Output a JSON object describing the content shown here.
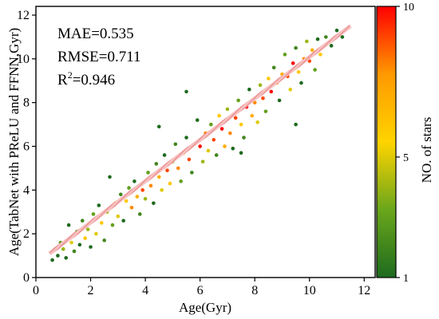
{
  "chart_data": {
    "type": "scatter",
    "title": "",
    "xlabel": "Age(Gyr)",
    "ylabel": "Age(TabNet with PReLU and FFNN,Gyr)",
    "xlim": [
      0,
      12.4
    ],
    "ylim": [
      0,
      12.4
    ],
    "xticks": [
      0,
      2,
      4,
      6,
      8,
      10,
      12
    ],
    "yticks": [
      0,
      2,
      4,
      6,
      8,
      10,
      12
    ],
    "grid": false,
    "annotations": {
      "mae": "MAE=0.535",
      "rmse": "RMSE=0.711",
      "r2_prefix": "R",
      "r2_sup": "2",
      "r2_value": "=0.946"
    },
    "reference_line": {
      "x": [
        0.5,
        11.5
      ],
      "y": [
        1.1,
        11.5
      ],
      "color": "#f4a0a0",
      "style": "hatched"
    },
    "colorbar": {
      "label": "NO. of stars",
      "ticks": [
        1,
        5,
        10
      ],
      "range": [
        1,
        10
      ],
      "colors": [
        "#1e6b1e",
        "#6aa61b",
        "#ffd400",
        "#ff9900",
        "#ff0000"
      ]
    },
    "points": [
      {
        "x": 0.6,
        "y": 0.8,
        "c": 1
      },
      {
        "x": 0.7,
        "y": 1.3,
        "c": 2
      },
      {
        "x": 0.8,
        "y": 1.0,
        "c": 1
      },
      {
        "x": 0.9,
        "y": 1.6,
        "c": 3
      },
      {
        "x": 1.0,
        "y": 1.3,
        "c": 4
      },
      {
        "x": 1.1,
        "y": 0.9,
        "c": 1
      },
      {
        "x": 1.2,
        "y": 2.4,
        "c": 1
      },
      {
        "x": 1.3,
        "y": 1.6,
        "c": 5
      },
      {
        "x": 1.4,
        "y": 1.2,
        "c": 2
      },
      {
        "x": 1.5,
        "y": 2.1,
        "c": 3
      },
      {
        "x": 1.6,
        "y": 1.5,
        "c": 1
      },
      {
        "x": 1.7,
        "y": 2.6,
        "c": 2
      },
      {
        "x": 1.8,
        "y": 1.8,
        "c": 6
      },
      {
        "x": 1.9,
        "y": 2.2,
        "c": 4
      },
      {
        "x": 2.0,
        "y": 1.4,
        "c": 1
      },
      {
        "x": 2.1,
        "y": 2.9,
        "c": 3
      },
      {
        "x": 2.2,
        "y": 2.0,
        "c": 5
      },
      {
        "x": 2.3,
        "y": 3.3,
        "c": 1
      },
      {
        "x": 2.4,
        "y": 2.5,
        "c": 6
      },
      {
        "x": 2.5,
        "y": 1.7,
        "c": 2
      },
      {
        "x": 2.6,
        "y": 3.0,
        "c": 4
      },
      {
        "x": 2.7,
        "y": 4.6,
        "c": 1
      },
      {
        "x": 2.8,
        "y": 2.4,
        "c": 3
      },
      {
        "x": 2.9,
        "y": 3.4,
        "c": 7
      },
      {
        "x": 3.0,
        "y": 2.8,
        "c": 5
      },
      {
        "x": 3.1,
        "y": 3.8,
        "c": 2
      },
      {
        "x": 3.2,
        "y": 2.6,
        "c": 1
      },
      {
        "x": 3.3,
        "y": 3.5,
        "c": 6
      },
      {
        "x": 3.4,
        "y": 4.1,
        "c": 3
      },
      {
        "x": 3.5,
        "y": 3.2,
        "c": 8
      },
      {
        "x": 3.6,
        "y": 4.4,
        "c": 1
      },
      {
        "x": 3.7,
        "y": 3.7,
        "c": 7
      },
      {
        "x": 3.8,
        "y": 2.9,
        "c": 2
      },
      {
        "x": 3.9,
        "y": 4.0,
        "c": 9
      },
      {
        "x": 4.0,
        "y": 3.6,
        "c": 4
      },
      {
        "x": 4.1,
        "y": 4.8,
        "c": 3
      },
      {
        "x": 4.2,
        "y": 4.2,
        "c": 8
      },
      {
        "x": 4.3,
        "y": 3.4,
        "c": 1
      },
      {
        "x": 4.4,
        "y": 5.2,
        "c": 2
      },
      {
        "x": 4.5,
        "y": 4.6,
        "c": 7
      },
      {
        "x": 4.6,
        "y": 4.0,
        "c": 5
      },
      {
        "x": 4.7,
        "y": 5.6,
        "c": 1
      },
      {
        "x": 4.8,
        "y": 4.9,
        "c": 9
      },
      {
        "x": 4.9,
        "y": 4.3,
        "c": 6
      },
      {
        "x": 5.0,
        "y": 5.3,
        "c": 4
      },
      {
        "x": 5.1,
        "y": 6.1,
        "c": 2
      },
      {
        "x": 5.2,
        "y": 5.0,
        "c": 8
      },
      {
        "x": 5.3,
        "y": 4.4,
        "c": 3
      },
      {
        "x": 5.4,
        "y": 5.7,
        "c": 7
      },
      {
        "x": 5.5,
        "y": 6.4,
        "c": 1
      },
      {
        "x": 5.6,
        "y": 5.4,
        "c": 9
      },
      {
        "x": 5.7,
        "y": 4.8,
        "c": 2
      },
      {
        "x": 5.8,
        "y": 6.1,
        "c": 6
      },
      {
        "x": 5.9,
        "y": 7.2,
        "c": 1
      },
      {
        "x": 6.0,
        "y": 6.0,
        "c": 10
      },
      {
        "x": 6.1,
        "y": 5.3,
        "c": 4
      },
      {
        "x": 6.2,
        "y": 6.6,
        "c": 8
      },
      {
        "x": 6.3,
        "y": 5.8,
        "c": 5
      },
      {
        "x": 6.4,
        "y": 7.0,
        "c": 3
      },
      {
        "x": 6.5,
        "y": 6.3,
        "c": 9
      },
      {
        "x": 6.6,
        "y": 5.6,
        "c": 2
      },
      {
        "x": 6.7,
        "y": 7.4,
        "c": 6
      },
      {
        "x": 6.8,
        "y": 6.8,
        "c": 10
      },
      {
        "x": 6.9,
        "y": 6.0,
        "c": 7
      },
      {
        "x": 7.0,
        "y": 7.7,
        "c": 4
      },
      {
        "x": 7.1,
        "y": 6.6,
        "c": 8
      },
      {
        "x": 7.2,
        "y": 5.9,
        "c": 1
      },
      {
        "x": 7.3,
        "y": 7.3,
        "c": 9
      },
      {
        "x": 7.4,
        "y": 8.1,
        "c": 3
      },
      {
        "x": 7.5,
        "y": 7.0,
        "c": 6
      },
      {
        "x": 7.6,
        "y": 6.4,
        "c": 2
      },
      {
        "x": 7.7,
        "y": 7.8,
        "c": 10
      },
      {
        "x": 7.8,
        "y": 8.6,
        "c": 1
      },
      {
        "x": 7.9,
        "y": 7.4,
        "c": 7
      },
      {
        "x": 8.0,
        "y": 8.0,
        "c": 8
      },
      {
        "x": 8.1,
        "y": 7.1,
        "c": 5
      },
      {
        "x": 8.2,
        "y": 8.8,
        "c": 4
      },
      {
        "x": 8.3,
        "y": 8.2,
        "c": 9
      },
      {
        "x": 8.4,
        "y": 7.6,
        "c": 3
      },
      {
        "x": 8.5,
        "y": 9.1,
        "c": 6
      },
      {
        "x": 8.6,
        "y": 8.5,
        "c": 10
      },
      {
        "x": 8.7,
        "y": 9.6,
        "c": 2
      },
      {
        "x": 8.8,
        "y": 8.9,
        "c": 8
      },
      {
        "x": 8.9,
        "y": 8.1,
        "c": 1
      },
      {
        "x": 9.0,
        "y": 9.3,
        "c": 7
      },
      {
        "x": 9.1,
        "y": 10.2,
        "c": 3
      },
      {
        "x": 9.2,
        "y": 9.2,
        "c": 9
      },
      {
        "x": 9.3,
        "y": 8.6,
        "c": 5
      },
      {
        "x": 9.4,
        "y": 9.8,
        "c": 10
      },
      {
        "x": 9.5,
        "y": 10.5,
        "c": 2
      },
      {
        "x": 9.6,
        "y": 9.4,
        "c": 6
      },
      {
        "x": 9.7,
        "y": 8.9,
        "c": 1
      },
      {
        "x": 9.8,
        "y": 10.0,
        "c": 8
      },
      {
        "x": 9.9,
        "y": 10.8,
        "c": 4
      },
      {
        "x": 10.0,
        "y": 9.9,
        "c": 9
      },
      {
        "x": 10.1,
        "y": 10.4,
        "c": 7
      },
      {
        "x": 10.2,
        "y": 9.5,
        "c": 3
      },
      {
        "x": 10.3,
        "y": 10.9,
        "c": 1
      },
      {
        "x": 10.4,
        "y": 10.2,
        "c": 6
      },
      {
        "x": 10.6,
        "y": 11.0,
        "c": 2
      },
      {
        "x": 10.8,
        "y": 10.6,
        "c": 1
      },
      {
        "x": 11.0,
        "y": 11.3,
        "c": 1
      },
      {
        "x": 11.2,
        "y": 11.0,
        "c": 1
      },
      {
        "x": 5.5,
        "y": 8.5,
        "c": 1
      },
      {
        "x": 9.5,
        "y": 7.0,
        "c": 1
      },
      {
        "x": 4.5,
        "y": 6.9,
        "c": 1
      },
      {
        "x": 7.5,
        "y": 5.7,
        "c": 1
      }
    ]
  }
}
